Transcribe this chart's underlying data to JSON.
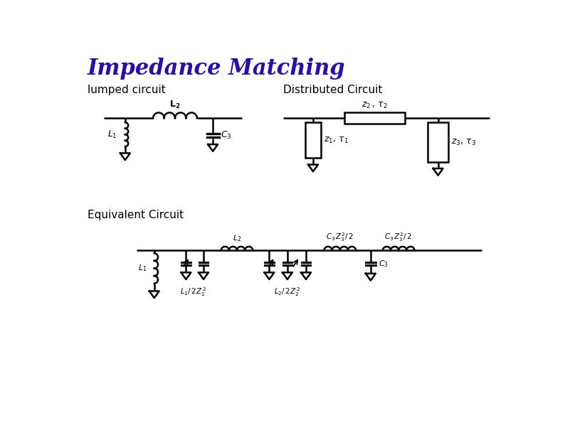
{
  "title": "Impedance Matching",
  "title_color": "#2B0DA8",
  "title_fontsize": 22,
  "title_style": "italic",
  "title_weight": "bold",
  "label_lumped": "lumped circuit",
  "label_distributed": "Distributed Circuit",
  "label_equivalent": "Equivalent Circuit",
  "label_fontsize": 11,
  "background_color": "#ffffff",
  "line_color": "#000000",
  "line_width": 1.8
}
